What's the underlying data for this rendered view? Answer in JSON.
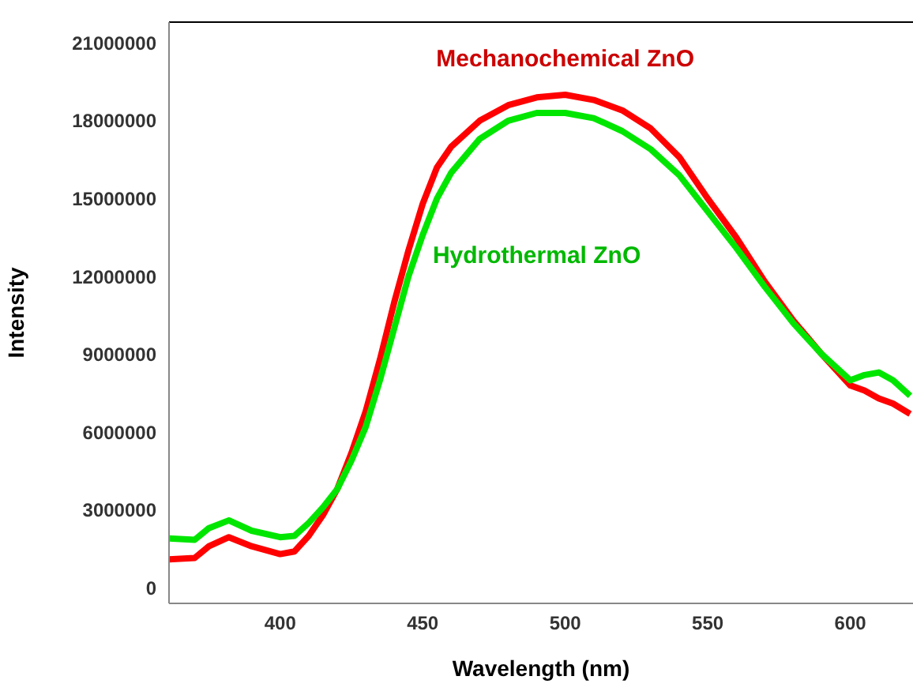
{
  "chart_data": {
    "type": "line",
    "xlabel": "Wavelength (nm)",
    "ylabel": "Intensity",
    "xlim": [
      361,
      622
    ],
    "xticks": [
      400,
      450,
      500,
      550,
      600
    ],
    "ylim": [
      -600000,
      21800000
    ],
    "yticks": [
      0,
      3000000,
      6000000,
      9000000,
      12000000,
      15000000,
      18000000,
      21000000
    ],
    "marker": "none",
    "line_style": "solid",
    "x": [
      361,
      370,
      375,
      382,
      390,
      400,
      405,
      410,
      415,
      420,
      425,
      430,
      435,
      440,
      445,
      450,
      455,
      460,
      470,
      480,
      490,
      500,
      510,
      520,
      530,
      540,
      550,
      560,
      570,
      580,
      590,
      600,
      605,
      610,
      615,
      621
    ],
    "series": [
      {
        "name": "Mechanochemical ZnO",
        "color": "#ff0000",
        "values": [
          1100000,
          1150000,
          1600000,
          1950000,
          1600000,
          1300000,
          1400000,
          2000000,
          2800000,
          3800000,
          5200000,
          6800000,
          8800000,
          11000000,
          13000000,
          14800000,
          16200000,
          17000000,
          18000000,
          18600000,
          18900000,
          19000000,
          18800000,
          18400000,
          17700000,
          16600000,
          15000000,
          13500000,
          11800000,
          10300000,
          9000000,
          7800000,
          7600000,
          7300000,
          7100000,
          6700000
        ]
      },
      {
        "name": "Hydrothermal ZnO",
        "color": "#00e600",
        "values": [
          1900000,
          1850000,
          2300000,
          2600000,
          2200000,
          1950000,
          2000000,
          2500000,
          3100000,
          3800000,
          4900000,
          6200000,
          8000000,
          10000000,
          12000000,
          13600000,
          15000000,
          16000000,
          17300000,
          18000000,
          18300000,
          18300000,
          18100000,
          17600000,
          16900000,
          15900000,
          14500000,
          13100000,
          11600000,
          10200000,
          9000000,
          8000000,
          8200000,
          8300000,
          8000000,
          7400000
        ]
      }
    ]
  }
}
